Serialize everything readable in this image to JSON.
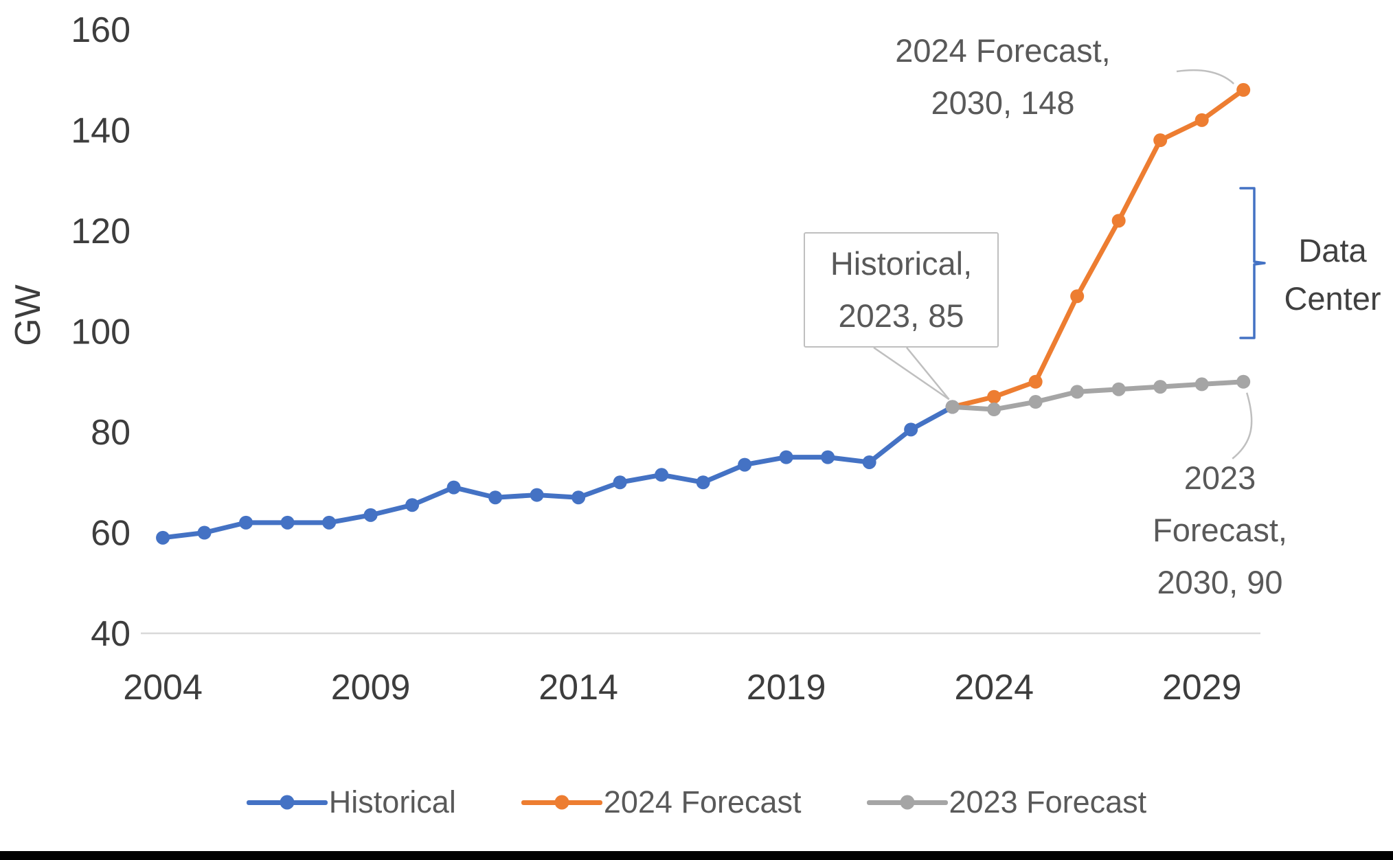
{
  "colors": {
    "historical": "#4472C4",
    "forecast_2024": "#ED7D31",
    "forecast_2023": "#A5A5A5",
    "axis_line": "#D9D9D9",
    "leader_line": "#BFBFBF",
    "bracket": "#4472C4",
    "axis_text": "#3d3d3d",
    "annotation_text": "#595959"
  },
  "chart_data": {
    "type": "line",
    "title": "",
    "xlabel": "",
    "ylabel": "GW",
    "ylim": [
      40,
      160
    ],
    "y_ticks": [
      40,
      60,
      80,
      100,
      120,
      140,
      160
    ],
    "x_ticks": [
      2004,
      2009,
      2014,
      2019,
      2024,
      2029
    ],
    "grid": false,
    "legend_position": "bottom",
    "series": [
      {
        "name": "Historical",
        "color": "#4472C4",
        "x": [
          2004,
          2005,
          2006,
          2007,
          2008,
          2009,
          2010,
          2011,
          2012,
          2013,
          2014,
          2015,
          2016,
          2017,
          2018,
          2019,
          2020,
          2021,
          2022,
          2023
        ],
        "y": [
          59,
          60,
          62,
          62,
          62,
          63.5,
          65.5,
          69,
          67,
          67.5,
          67,
          70,
          71.5,
          70,
          73.5,
          75,
          75,
          74,
          80.5,
          85
        ]
      },
      {
        "name": "2024 Forecast",
        "color": "#ED7D31",
        "x": [
          2023,
          2024,
          2025,
          2026,
          2027,
          2028,
          2029,
          2030
        ],
        "y": [
          85,
          87,
          90,
          107,
          122,
          138,
          142,
          148
        ]
      },
      {
        "name": "2023 Forecast",
        "color": "#A5A5A5",
        "x": [
          2023,
          2024,
          2025,
          2026,
          2027,
          2028,
          2029,
          2030
        ],
        "y": [
          85,
          84.5,
          86,
          88,
          88.5,
          89,
          89.5,
          90
        ]
      }
    ],
    "annotations": [
      {
        "id": "forecast2024",
        "lines": [
          "2024 Forecast,",
          "2030,  148"
        ],
        "series": "2024 Forecast",
        "x": 2030,
        "y": 148
      },
      {
        "id": "historical",
        "lines": [
          "Historical,",
          "2023, 85"
        ],
        "series": "Historical",
        "x": 2023,
        "y": 85,
        "style": "callout"
      },
      {
        "id": "forecast2023",
        "lines": [
          "2023",
          "Forecast,",
          "2030,  90"
        ],
        "series": "2023 Forecast",
        "x": 2030,
        "y": 90
      },
      {
        "id": "data_center",
        "lines": [
          "Data",
          "Center"
        ],
        "style": "bracket"
      }
    ]
  }
}
